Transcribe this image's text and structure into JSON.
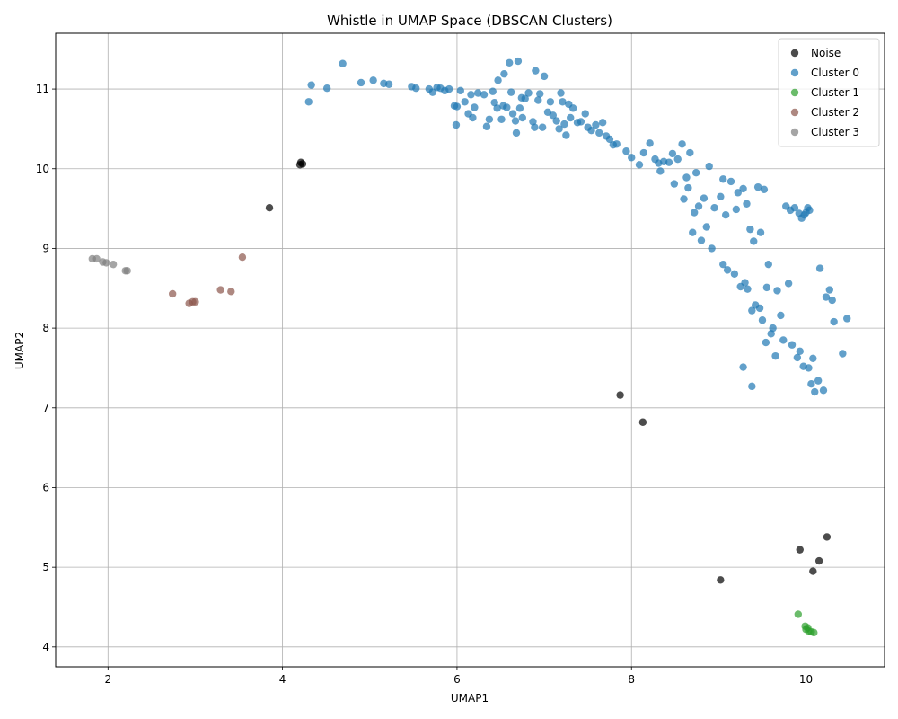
{
  "chart_data": {
    "type": "scatter",
    "title": "Whistle in UMAP Space (DBSCAN Clusters)",
    "xlabel": "UMAP1",
    "ylabel": "UMAP2",
    "xlim": [
      1.4,
      10.9
    ],
    "ylim": [
      3.75,
      11.7
    ],
    "xticks": [
      2,
      4,
      6,
      8,
      10
    ],
    "yticks": [
      4,
      5,
      6,
      7,
      8,
      9,
      10,
      11
    ],
    "grid": true,
    "legend_position": "top-right",
    "series": [
      {
        "name": "Noise",
        "color": "#000000",
        "points": [
          [
            4.21,
            10.08
          ],
          [
            4.23,
            10.06
          ],
          [
            4.2,
            10.05
          ],
          [
            3.85,
            9.51
          ],
          [
            7.87,
            7.16
          ],
          [
            8.13,
            6.82
          ],
          [
            9.93,
            5.22
          ],
          [
            10.24,
            5.38
          ],
          [
            10.15,
            5.08
          ],
          [
            10.08,
            4.95
          ],
          [
            9.02,
            4.84
          ]
        ]
      },
      {
        "name": "Cluster 0",
        "color": "#1f77b4",
        "points": [
          [
            4.3,
            10.84
          ],
          [
            4.33,
            11.05
          ],
          [
            4.51,
            11.01
          ],
          [
            4.69,
            11.32
          ],
          [
            4.9,
            11.08
          ],
          [
            5.04,
            11.11
          ],
          [
            5.16,
            11.07
          ],
          [
            5.22,
            11.06
          ],
          [
            5.48,
            11.03
          ],
          [
            5.53,
            11.01
          ],
          [
            5.68,
            11.0
          ],
          [
            5.72,
            10.96
          ],
          [
            5.77,
            11.02
          ],
          [
            5.81,
            11.01
          ],
          [
            5.86,
            10.98
          ],
          [
            5.91,
            11.0
          ],
          [
            5.97,
            10.79
          ],
          [
            5.99,
            10.55
          ],
          [
            6.0,
            10.78
          ],
          [
            6.04,
            10.98
          ],
          [
            6.09,
            10.84
          ],
          [
            6.13,
            10.69
          ],
          [
            6.16,
            10.93
          ],
          [
            6.18,
            10.64
          ],
          [
            6.2,
            10.77
          ],
          [
            6.24,
            10.95
          ],
          [
            6.31,
            10.93
          ],
          [
            6.34,
            10.53
          ],
          [
            6.37,
            10.62
          ],
          [
            6.41,
            10.97
          ],
          [
            6.43,
            10.83
          ],
          [
            6.46,
            10.76
          ],
          [
            6.47,
            11.11
          ],
          [
            6.51,
            10.62
          ],
          [
            6.53,
            10.79
          ],
          [
            6.54,
            11.19
          ],
          [
            6.57,
            10.77
          ],
          [
            6.6,
            11.33
          ],
          [
            6.62,
            10.96
          ],
          [
            6.64,
            10.69
          ],
          [
            6.67,
            10.6
          ],
          [
            6.68,
            10.45
          ],
          [
            6.7,
            11.35
          ],
          [
            6.72,
            10.76
          ],
          [
            6.74,
            10.89
          ],
          [
            6.75,
            10.64
          ],
          [
            6.78,
            10.88
          ],
          [
            6.82,
            10.95
          ],
          [
            6.87,
            10.59
          ],
          [
            6.89,
            10.52
          ],
          [
            6.9,
            11.23
          ],
          [
            6.93,
            10.86
          ],
          [
            6.95,
            10.94
          ],
          [
            6.98,
            10.52
          ],
          [
            7.0,
            11.16
          ],
          [
            7.04,
            10.71
          ],
          [
            7.07,
            10.84
          ],
          [
            7.1,
            10.67
          ],
          [
            7.14,
            10.6
          ],
          [
            7.17,
            10.5
          ],
          [
            7.19,
            10.95
          ],
          [
            7.21,
            10.84
          ],
          [
            7.23,
            10.56
          ],
          [
            7.25,
            10.42
          ],
          [
            7.28,
            10.81
          ],
          [
            7.3,
            10.64
          ],
          [
            7.33,
            10.76
          ],
          [
            7.38,
            10.58
          ],
          [
            7.42,
            10.59
          ],
          [
            7.47,
            10.69
          ],
          [
            7.5,
            10.52
          ],
          [
            7.54,
            10.48
          ],
          [
            7.59,
            10.55
          ],
          [
            7.63,
            10.45
          ],
          [
            7.67,
            10.58
          ],
          [
            7.71,
            10.41
          ],
          [
            7.75,
            10.37
          ],
          [
            7.79,
            10.3
          ],
          [
            7.83,
            10.31
          ],
          [
            7.94,
            10.22
          ],
          [
            8.0,
            10.14
          ],
          [
            8.09,
            10.05
          ],
          [
            8.14,
            10.2
          ],
          [
            8.21,
            10.32
          ],
          [
            8.27,
            10.12
          ],
          [
            8.31,
            10.07
          ],
          [
            8.33,
            9.97
          ],
          [
            8.37,
            10.09
          ],
          [
            8.43,
            10.08
          ],
          [
            8.47,
            10.19
          ],
          [
            8.49,
            9.81
          ],
          [
            8.53,
            10.12
          ],
          [
            8.58,
            10.31
          ],
          [
            8.6,
            9.62
          ],
          [
            8.63,
            9.89
          ],
          [
            8.65,
            9.76
          ],
          [
            8.67,
            10.2
          ],
          [
            8.7,
            9.2
          ],
          [
            8.72,
            9.45
          ],
          [
            8.74,
            9.95
          ],
          [
            8.77,
            9.53
          ],
          [
            8.8,
            9.1
          ],
          [
            8.83,
            9.63
          ],
          [
            8.86,
            9.27
          ],
          [
            8.89,
            10.03
          ],
          [
            8.92,
            9.0
          ],
          [
            8.95,
            9.51
          ],
          [
            9.02,
            9.65
          ],
          [
            9.05,
            9.87
          ],
          [
            9.08,
            9.42
          ],
          [
            9.05,
            8.8
          ],
          [
            9.1,
            8.73
          ],
          [
            9.14,
            9.84
          ],
          [
            9.18,
            8.68
          ],
          [
            9.2,
            9.49
          ],
          [
            9.22,
            9.7
          ],
          [
            9.25,
            8.52
          ],
          [
            9.28,
            9.75
          ],
          [
            9.3,
            8.57
          ],
          [
            9.32,
            9.56
          ],
          [
            9.33,
            8.49
          ],
          [
            9.36,
            9.24
          ],
          [
            9.38,
            8.22
          ],
          [
            9.4,
            9.09
          ],
          [
            9.42,
            8.29
          ],
          [
            9.45,
            9.77
          ],
          [
            9.47,
            8.25
          ],
          [
            9.48,
            9.2
          ],
          [
            9.5,
            8.1
          ],
          [
            9.52,
            9.74
          ],
          [
            9.54,
            7.82
          ],
          [
            9.55,
            8.51
          ],
          [
            9.57,
            8.8
          ],
          [
            9.6,
            7.93
          ],
          [
            9.62,
            8.0
          ],
          [
            9.65,
            7.65
          ],
          [
            9.67,
            8.47
          ],
          [
            9.71,
            8.16
          ],
          [
            9.74,
            7.85
          ],
          [
            9.77,
            9.53
          ],
          [
            9.8,
            8.56
          ],
          [
            9.82,
            9.48
          ],
          [
            9.84,
            7.79
          ],
          [
            9.87,
            9.51
          ],
          [
            9.9,
            7.63
          ],
          [
            9.93,
            7.71
          ],
          [
            9.95,
            9.38
          ],
          [
            9.97,
            7.52
          ],
          [
            10.0,
            9.45
          ],
          [
            10.03,
            7.5
          ],
          [
            10.06,
            7.3
          ],
          [
            10.08,
            7.62
          ],
          [
            10.1,
            7.2
          ],
          [
            10.14,
            7.34
          ],
          [
            10.16,
            8.75
          ],
          [
            10.2,
            7.22
          ],
          [
            10.23,
            8.39
          ],
          [
            10.27,
            8.48
          ],
          [
            10.3,
            8.35
          ],
          [
            10.32,
            8.08
          ],
          [
            10.42,
            7.68
          ],
          [
            10.47,
            8.12
          ],
          [
            9.28,
            7.51
          ],
          [
            9.38,
            7.27
          ],
          [
            10.02,
            9.51
          ],
          [
            10.04,
            9.48
          ],
          [
            9.98,
            9.42
          ],
          [
            9.92,
            9.44
          ]
        ]
      },
      {
        "name": "Cluster 1",
        "color": "#2ca02c",
        "points": [
          [
            9.91,
            4.41
          ],
          [
            9.99,
            4.26
          ],
          [
            10.0,
            4.22
          ],
          [
            10.03,
            4.2
          ],
          [
            10.06,
            4.19
          ],
          [
            10.09,
            4.18
          ],
          [
            10.02,
            4.24
          ]
        ]
      },
      {
        "name": "Cluster 2",
        "color": "#8c564b",
        "points": [
          [
            2.74,
            8.43
          ],
          [
            2.93,
            8.31
          ],
          [
            2.97,
            8.33
          ],
          [
            3.0,
            8.33
          ],
          [
            3.29,
            8.48
          ],
          [
            3.41,
            8.46
          ],
          [
            3.54,
            8.89
          ]
        ]
      },
      {
        "name": "Cluster 3",
        "color": "#7f7f7f",
        "points": [
          [
            1.82,
            8.87
          ],
          [
            1.87,
            8.87
          ],
          [
            1.94,
            8.83
          ],
          [
            1.98,
            8.82
          ],
          [
            2.06,
            8.8
          ],
          [
            2.2,
            8.72
          ],
          [
            2.22,
            8.72
          ]
        ]
      }
    ]
  }
}
